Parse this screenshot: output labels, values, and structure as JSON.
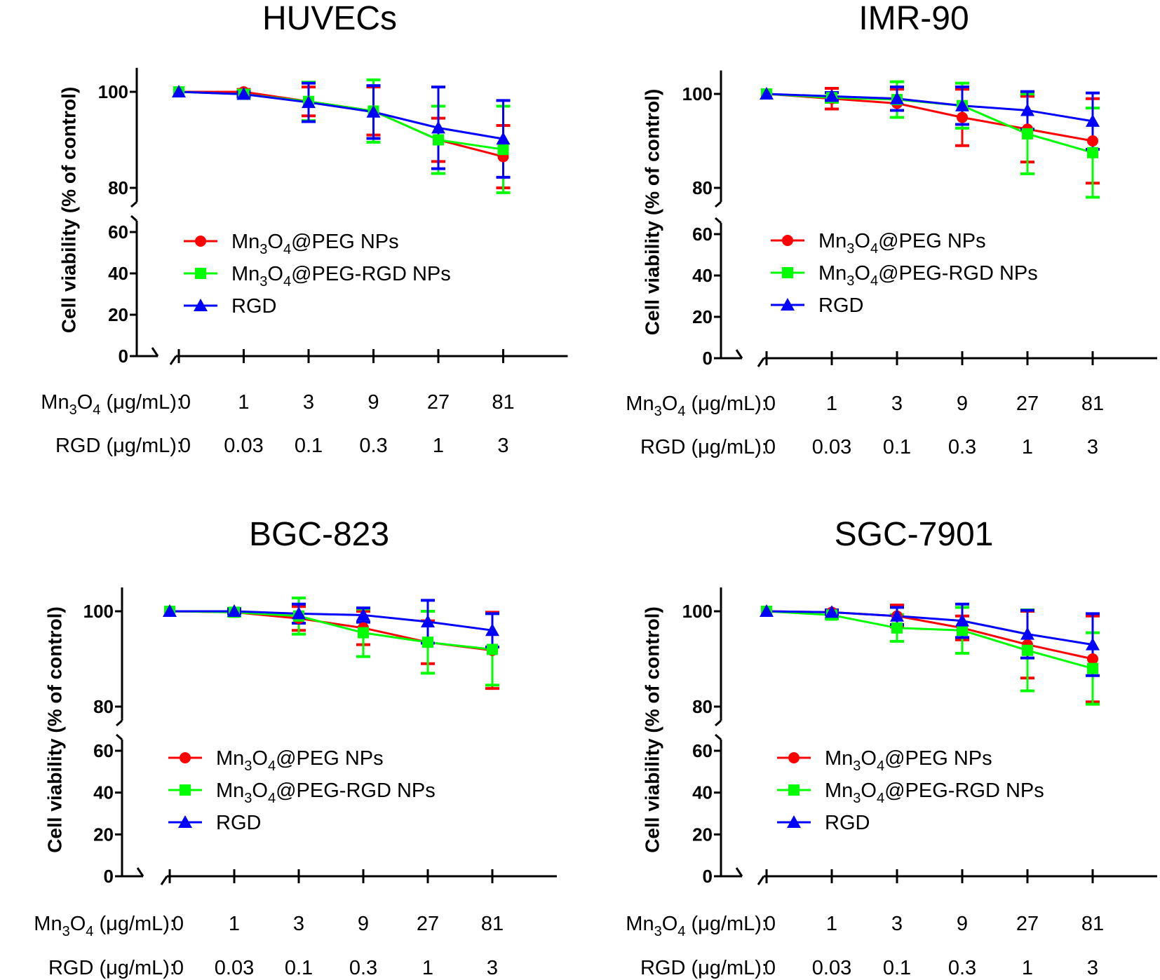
{
  "colors": {
    "Mn3O4@PEG NPs": "#ff0000",
    "Mn3O4@PEG-RGD NPs": "#00ff00",
    "RGD": "#0000ff"
  },
  "row_labels": {
    "mn3o4": {
      "pre": "Mn",
      "s1": "3",
      "mid": "O",
      "s2": "4",
      "post": " (μg/mL):"
    },
    "rgd": "RGD  (μg/mL):"
  },
  "legend": [
    {
      "pre": "Mn",
      "s1": "3",
      "mid": "O",
      "s2": "4",
      "post": "@PEG NPs",
      "color": "#ff0000",
      "marker": "circle"
    },
    {
      "pre": "Mn",
      "s1": "3",
      "mid": "O",
      "s2": "4",
      "post": "@PEG-RGD NPs",
      "color": "#00ff00",
      "marker": "square"
    },
    {
      "pre": "RGD",
      "s1": "",
      "mid": "",
      "s2": "",
      "post": "",
      "color": "#0000ff",
      "marker": "triangle"
    }
  ],
  "chart_data": [
    {
      "type": "line",
      "title": "HUVECs",
      "ylabel": "Cell viability (% of control)",
      "ylim_upper": [
        80,
        105
      ],
      "ylim_lower": [
        0,
        60
      ],
      "yticks_upper": [
        "100",
        "80"
      ],
      "yticks_lower": [
        "60",
        "40",
        "20",
        "0"
      ],
      "xtick_mn3o4": [
        "0",
        "1",
        "3",
        "9",
        "27",
        "81"
      ],
      "xtick_rgd": [
        "0",
        "0.03",
        "0.1",
        "0.3",
        "1",
        "3"
      ],
      "series": [
        {
          "name": "Mn3O4@PEG NPs",
          "values": [
            100,
            100,
            98,
            96,
            90,
            86.5
          ],
          "err": [
            0,
            0.5,
            3,
            5,
            4.5,
            6.5
          ]
        },
        {
          "name": "Mn3O4@PEG-RGD NPs",
          "values": [
            100,
            99.5,
            98,
            96,
            90,
            88
          ],
          "err": [
            0,
            0.8,
            4,
            6.5,
            7,
            9
          ]
        },
        {
          "name": "RGD",
          "values": [
            100,
            99.5,
            97.8,
            95.8,
            92.5,
            90.2
          ],
          "err": [
            0,
            0.5,
            4,
            5.5,
            8.5,
            8
          ]
        }
      ]
    },
    {
      "type": "line",
      "title": "IMR-90",
      "ylabel": "Cell viability (% of control)",
      "ylim_upper": [
        80,
        105
      ],
      "ylim_lower": [
        0,
        60
      ],
      "yticks_upper": [
        "100",
        "80"
      ],
      "yticks_lower": [
        "60",
        "40",
        "20",
        "0"
      ],
      "xtick_mn3o4": [
        "0",
        "1",
        "3",
        "9",
        "27",
        "81"
      ],
      "xtick_rgd": [
        "0",
        "0.03",
        "0.1",
        "0.3",
        "1",
        "3"
      ],
      "series": [
        {
          "name": "Mn3O4@PEG NPs",
          "values": [
            100,
            99,
            98,
            95,
            92.5,
            90
          ],
          "err": [
            0,
            2.2,
            3,
            6,
            7,
            9
          ]
        },
        {
          "name": "Mn3O4@PEG-RGD NPs",
          "values": [
            100,
            99.2,
            98.8,
            97.5,
            91.5,
            87.5
          ],
          "err": [
            0,
            1,
            3.8,
            4.8,
            8.5,
            9.5
          ]
        },
        {
          "name": "RGD",
          "values": [
            100,
            99.5,
            99,
            97.5,
            96.5,
            94.2
          ],
          "err": [
            0,
            0.8,
            2.5,
            4,
            4,
            6
          ]
        }
      ]
    },
    {
      "type": "line",
      "title": "BGC-823",
      "ylabel": "Cell viability (% of control)",
      "ylim_upper": [
        80,
        105
      ],
      "ylim_lower": [
        0,
        60
      ],
      "yticks_upper": [
        "100",
        "80"
      ],
      "yticks_lower": [
        "60",
        "40",
        "20",
        "0"
      ],
      "xtick_mn3o4": [
        "0",
        "1",
        "3",
        "9",
        "27",
        "81"
      ],
      "xtick_rgd": [
        "0",
        "0.03",
        "0.1",
        "0.3",
        "1",
        "3"
      ],
      "series": [
        {
          "name": "Mn3O4@PEG NPs",
          "values": [
            100,
            99.8,
            98.5,
            96.5,
            93.5,
            91.8
          ],
          "err": [
            0,
            0.5,
            2.5,
            3.5,
            4.5,
            8
          ]
        },
        {
          "name": "Mn3O4@PEG-RGD NPs",
          "values": [
            100,
            99.8,
            99,
            95.5,
            93.5,
            92
          ],
          "err": [
            0,
            0.8,
            3.8,
            5,
            6.5,
            7.5
          ]
        },
        {
          "name": "RGD",
          "values": [
            100,
            100,
            99.5,
            99.2,
            97.8,
            96
          ],
          "err": [
            0,
            0.5,
            2,
            1.5,
            4.5,
            3.5
          ]
        }
      ]
    },
    {
      "type": "line",
      "title": "SGC-7901",
      "ylabel": "Cell viability (% of control)",
      "ylim_upper": [
        80,
        105
      ],
      "ylim_lower": [
        0,
        60
      ],
      "yticks_upper": [
        "100",
        "80"
      ],
      "yticks_lower": [
        "60",
        "40",
        "20",
        "0"
      ],
      "xtick_mn3o4": [
        "0",
        "1",
        "3",
        "9",
        "27",
        "81"
      ],
      "xtick_rgd": [
        "0",
        "0.03",
        "0.1",
        "0.3",
        "1",
        "3"
      ],
      "series": [
        {
          "name": "Mn3O4@PEG NPs",
          "values": [
            100,
            99.8,
            99,
            96.5,
            93,
            90
          ],
          "err": [
            0,
            0.5,
            2.3,
            2.5,
            7,
            9
          ]
        },
        {
          "name": "Mn3O4@PEG-RGD NPs",
          "values": [
            100,
            99.2,
            96.5,
            96,
            91.8,
            88
          ],
          "err": [
            0,
            0.8,
            2.8,
            4.8,
            8.5,
            7.5
          ]
        },
        {
          "name": "RGD",
          "values": [
            100,
            99.8,
            99,
            98,
            95.2,
            93
          ],
          "err": [
            0,
            0.5,
            1.8,
            3.5,
            5,
            6.5
          ]
        }
      ]
    }
  ]
}
